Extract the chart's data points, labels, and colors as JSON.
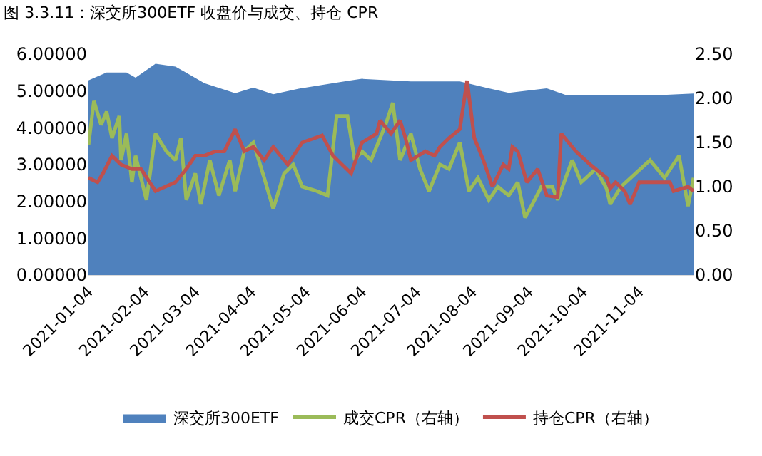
{
  "chart_data": {
    "type": "line",
    "title": "图 3.3.11：深交所300ETF 收盘价与成交、持仓 CPR",
    "xlim": [
      "2021-01-04",
      "2021-12-04"
    ],
    "xticks": [
      {
        "value": "2021-01-04",
        "label": "2021-01-04"
      },
      {
        "value": "2021-02-04",
        "label": "2021-02-04"
      },
      {
        "value": "2021-03-04",
        "label": "2021-03-04"
      },
      {
        "value": "2021-04-04",
        "label": "2021-04-04"
      },
      {
        "value": "2021-05-04",
        "label": "2021-05-04"
      },
      {
        "value": "2021-06-04",
        "label": "2021-06-04"
      },
      {
        "value": "2021-07-04",
        "label": "2021-07-04"
      },
      {
        "value": "2021-08-04",
        "label": "2021-08-04"
      },
      {
        "value": "2021-09-04",
        "label": "2021-09-04"
      },
      {
        "value": "2021-10-04",
        "label": "2021-10-04"
      },
      {
        "value": "2021-11-04",
        "label": "2021-11-04"
      }
    ],
    "ylim": [
      0,
      6
    ],
    "yticks": [
      {
        "value": 0,
        "label": "0.00000"
      },
      {
        "value": 1,
        "label": "1.00000"
      },
      {
        "value": 2,
        "label": "2.00000"
      },
      {
        "value": 3,
        "label": "3.00000"
      },
      {
        "value": 4,
        "label": "4.00000"
      },
      {
        "value": 5,
        "label": "5.00000"
      },
      {
        "value": 6,
        "label": "6.00000"
      }
    ],
    "y2lim": [
      0,
      2.5
    ],
    "y2ticks": [
      {
        "value": 0,
        "label": "0.00"
      },
      {
        "value": 0.5,
        "label": "0.50"
      },
      {
        "value": 1,
        "label": "1.00"
      },
      {
        "value": 1.5,
        "label": "1.50"
      },
      {
        "value": 2,
        "label": "2.00"
      },
      {
        "value": 2.5,
        "label": "2.50"
      }
    ],
    "grid": false,
    "legend": "bottom",
    "marker": "none",
    "series": [
      {
        "name": "深交所300ETF",
        "type": "area",
        "color": "#4f81bd",
        "x": [
          "2021-01-04",
          "2021-01-14",
          "2021-01-25",
          "2021-01-30",
          "2021-02-10",
          "2021-02-21",
          "2021-03-01",
          "2021-03-09",
          "2021-03-26",
          "2021-04-05",
          "2021-04-16",
          "2021-04-30",
          "2021-05-19",
          "2021-05-29",
          "2021-06-04",
          "2021-07-01",
          "2021-07-28",
          "2021-08-13",
          "2021-08-24",
          "2021-09-14",
          "2021-09-25",
          "2021-10-17",
          "2021-11-13",
          "2021-12-04"
        ],
        "values": [
          5.29,
          5.5,
          5.5,
          5.36,
          5.74,
          5.66,
          5.44,
          5.21,
          4.94,
          5.09,
          4.91,
          5.06,
          5.21,
          5.29,
          5.33,
          5.26,
          5.26,
          5.07,
          4.95,
          5.07,
          4.88,
          4.88,
          4.88,
          4.93
        ]
      },
      {
        "name": "成交CPR（右轴）",
        "type": "line",
        "axis": "y2",
        "color": "#9bbb59",
        "x": [
          "2021-01-04",
          "2021-01-07",
          "2021-01-11",
          "2021-01-14",
          "2021-01-17",
          "2021-01-21",
          "2021-01-22",
          "2021-01-25",
          "2021-01-28",
          "2021-01-30",
          "2021-02-05",
          "2021-02-10",
          "2021-02-16",
          "2021-02-21",
          "2021-02-24",
          "2021-02-27",
          "2021-03-04",
          "2021-03-07",
          "2021-03-12",
          "2021-03-17",
          "2021-03-23",
          "2021-03-26",
          "2021-03-31",
          "2021-04-05",
          "2021-04-11",
          "2021-04-16",
          "2021-04-22",
          "2021-04-27",
          "2021-05-02",
          "2021-05-10",
          "2021-05-16",
          "2021-05-21",
          "2021-05-27",
          "2021-05-31",
          "2021-06-04",
          "2021-06-09",
          "2021-06-17",
          "2021-06-21",
          "2021-06-25",
          "2021-07-01",
          "2021-07-06",
          "2021-07-11",
          "2021-07-17",
          "2021-07-22",
          "2021-07-28",
          "2021-08-02",
          "2021-08-07",
          "2021-08-13",
          "2021-08-18",
          "2021-08-24",
          "2021-08-29",
          "2021-09-02",
          "2021-09-06",
          "2021-09-11",
          "2021-09-17",
          "2021-09-20",
          "2021-09-28",
          "2021-10-03",
          "2021-10-11",
          "2021-10-17",
          "2021-10-19",
          "2021-10-25",
          "2021-11-02",
          "2021-11-10",
          "2021-11-18",
          "2021-11-26",
          "2021-12-01",
          "2021-12-04"
        ],
        "values": [
          1.47,
          1.97,
          1.7,
          1.85,
          1.55,
          1.8,
          1.3,
          1.6,
          1.05,
          1.35,
          0.85,
          1.6,
          1.4,
          1.3,
          1.55,
          0.85,
          1.15,
          0.8,
          1.3,
          0.9,
          1.3,
          0.95,
          1.4,
          1.5,
          1.1,
          0.75,
          1.15,
          1.25,
          1.0,
          0.95,
          0.9,
          1.8,
          1.8,
          1.3,
          1.4,
          1.3,
          1.7,
          1.95,
          1.3,
          1.6,
          1.2,
          0.95,
          1.25,
          1.2,
          1.5,
          0.95,
          1.1,
          0.85,
          1.0,
          0.9,
          1.05,
          0.65,
          0.8,
          1.0,
          1.0,
          0.85,
          1.3,
          1.05,
          1.2,
          0.98,
          0.8,
          1.0,
          1.15,
          1.3,
          1.1,
          1.35,
          0.78,
          1.1
        ]
      },
      {
        "name": "持仓CPR（右轴）",
        "type": "line",
        "axis": "y2",
        "color": "#c0504d",
        "x": [
          "2021-01-04",
          "2021-01-09",
          "2021-01-12",
          "2021-01-17",
          "2021-01-22",
          "2021-01-28",
          "2021-02-02",
          "2021-02-10",
          "2021-02-21",
          "2021-02-27",
          "2021-03-04",
          "2021-03-09",
          "2021-03-15",
          "2021-03-20",
          "2021-03-26",
          "2021-03-31",
          "2021-04-05",
          "2021-04-11",
          "2021-04-16",
          "2021-04-24",
          "2021-05-02",
          "2021-05-13",
          "2021-05-19",
          "2021-05-24",
          "2021-05-29",
          "2021-06-04",
          "2021-06-12",
          "2021-06-14",
          "2021-06-20",
          "2021-06-25",
          "2021-06-28",
          "2021-07-01",
          "2021-07-09",
          "2021-07-14",
          "2021-07-17",
          "2021-07-22",
          "2021-07-28",
          "2021-08-01",
          "2021-08-05",
          "2021-08-10",
          "2021-08-15",
          "2021-08-21",
          "2021-08-24",
          "2021-08-26",
          "2021-08-29",
          "2021-09-03",
          "2021-09-09",
          "2021-09-14",
          "2021-09-20",
          "2021-09-22",
          "2021-09-30",
          "2021-10-08",
          "2021-10-17",
          "2021-10-19",
          "2021-10-22",
          "2021-10-27",
          "2021-10-30",
          "2021-11-04",
          "2021-11-13",
          "2021-11-21",
          "2021-11-23",
          "2021-12-01",
          "2021-12-04"
        ],
        "values": [
          1.1,
          1.05,
          1.15,
          1.35,
          1.25,
          1.2,
          1.2,
          0.95,
          1.05,
          1.2,
          1.35,
          1.35,
          1.4,
          1.4,
          1.65,
          1.4,
          1.45,
          1.3,
          1.45,
          1.25,
          1.5,
          1.58,
          1.35,
          1.25,
          1.15,
          1.5,
          1.6,
          1.75,
          1.6,
          1.75,
          1.55,
          1.3,
          1.4,
          1.35,
          1.45,
          1.55,
          1.65,
          2.2,
          1.55,
          1.3,
          1.0,
          1.25,
          1.2,
          1.45,
          1.4,
          1.05,
          1.2,
          0.9,
          0.88,
          1.6,
          1.4,
          1.25,
          1.1,
          0.98,
          1.05,
          0.95,
          0.8,
          1.05,
          1.05,
          1.05,
          0.95,
          1.0,
          0.95
        ]
      }
    ]
  }
}
